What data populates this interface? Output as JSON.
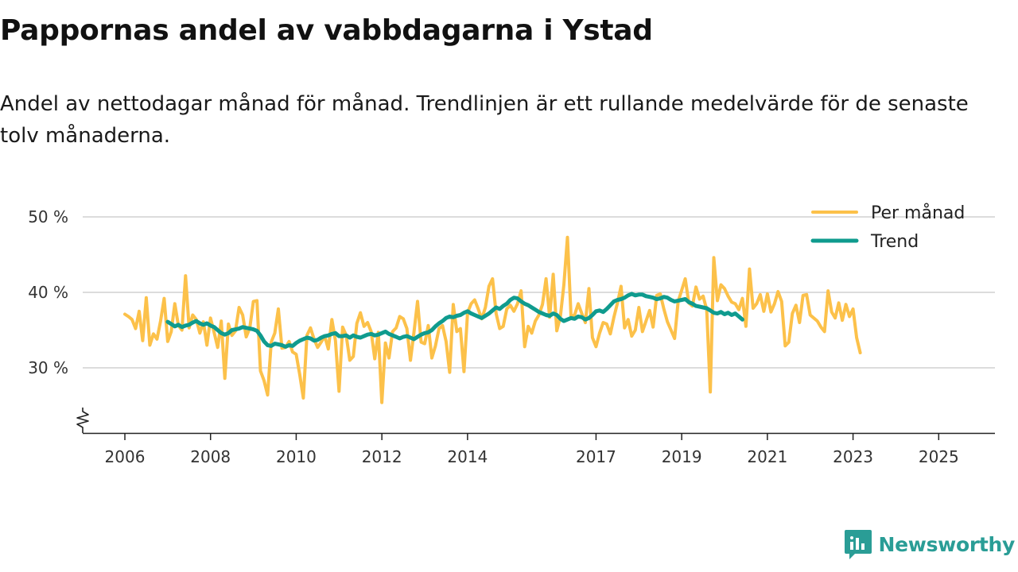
{
  "title": "Pappornas andel av vabbdagarna i Ystad",
  "subtitle": "Andel av nettodagar månad för månad. Trendlinjen är ett rullande medelvärde för de senaste tolv månaderna.",
  "brand": {
    "name": "Newsworthy",
    "accent": "#2a9d96"
  },
  "chart_data": {
    "type": "line",
    "ylim": [
      22,
      50
    ],
    "yticks": [
      30,
      40,
      50
    ],
    "ytick_labels": [
      "30 %",
      "40 %",
      "50 %"
    ],
    "xlim": [
      2006.0,
      2025.5
    ],
    "xticks": [
      2006,
      2008,
      2010,
      2012,
      2014,
      2017,
      2019,
      2021,
      2023,
      2025
    ],
    "xtick_labels": [
      "2006",
      "2008",
      "2010",
      "2012",
      "2014",
      "2017",
      "2019",
      "2021",
      "2023",
      "2025"
    ],
    "x_start": 2006.0,
    "x_step": 0.0833333,
    "grid": true,
    "axis_break": true,
    "legend_position": "top-right",
    "series": [
      {
        "name": "Per månad",
        "color": "#fcc14a",
        "values": [
          37.1,
          36.8,
          36.4,
          35.2,
          37.5,
          33.6,
          39.3,
          33.0,
          34.5,
          33.8,
          36.2,
          39.2,
          33.5,
          34.8,
          38.5,
          35.6,
          35.0,
          42.2,
          35.3,
          37.0,
          36.4,
          34.6,
          36.1,
          33.0,
          36.6,
          34.7,
          32.7,
          36.2,
          28.6,
          35.8,
          34.3,
          34.9,
          38.0,
          37.0,
          34.1,
          35.3,
          38.8,
          38.9,
          29.6,
          28.3,
          26.4,
          33.4,
          34.6,
          37.8,
          32.6,
          32.7,
          33.5,
          32.1,
          31.8,
          29.1,
          26.0,
          34.3,
          35.3,
          33.8,
          32.7,
          33.4,
          34.2,
          32.5,
          36.4,
          33.6,
          26.9,
          35.4,
          34.3,
          31.0,
          31.5,
          35.9,
          37.3,
          35.5,
          36.0,
          34.8,
          31.2,
          34.7,
          25.4,
          33.3,
          31.3,
          34.8,
          35.3,
          36.8,
          36.5,
          35.2,
          31.0,
          34.7,
          38.8,
          33.4,
          33.2,
          35.6,
          31.3,
          32.9,
          35.2,
          35.6,
          33.5,
          29.4,
          38.4,
          34.8,
          35.2,
          29.5,
          37.3,
          38.5,
          39.0,
          37.8,
          36.5,
          38.0,
          40.8,
          41.8,
          37.2,
          35.2,
          35.5,
          37.8,
          38.3,
          37.5,
          38.5,
          40.2,
          32.8,
          35.5,
          34.6,
          36.2,
          37.0,
          38.4,
          41.8,
          36.7,
          42.4,
          34.9,
          36.8,
          41.0,
          47.3,
          36.8,
          37.0,
          38.5,
          37.2,
          36.0,
          40.5,
          34.0,
          32.8,
          34.6,
          36.0,
          35.8,
          34.5,
          36.7,
          38.6,
          40.8,
          35.3,
          36.4,
          34.2,
          35.0,
          38.0,
          34.8,
          36.2,
          37.6,
          35.4,
          39.6,
          39.8,
          37.8,
          36.1,
          35.0,
          33.9,
          38.8,
          40.3,
          41.8,
          38.6,
          38.2,
          40.7,
          39.1,
          39.5,
          37.7,
          26.8,
          44.6,
          38.9,
          41.0,
          40.5,
          39.5,
          38.7,
          38.5,
          37.7,
          39.2,
          35.5,
          43.1,
          37.9,
          38.5,
          39.7,
          37.5,
          39.8,
          37.4,
          38.5,
          40.1,
          38.8,
          32.9,
          33.4,
          37.2,
          38.3,
          36.0,
          39.6,
          39.7,
          37.0,
          36.6,
          36.2,
          35.4,
          34.8,
          40.2,
          37.4,
          36.6,
          38.6,
          36.3,
          38.4,
          36.8,
          37.8,
          34.0,
          32.0
        ]
      },
      {
        "name": "Trend",
        "color": "#0f9b8e",
        "offset": 12,
        "values": [
          36.1,
          35.8,
          35.5,
          35.7,
          35.4,
          35.6,
          35.7,
          36.0,
          36.2,
          35.9,
          35.7,
          35.9,
          35.6,
          35.4,
          35.0,
          34.6,
          34.4,
          34.6,
          35.0,
          35.1,
          35.2,
          35.4,
          35.3,
          35.2,
          35.1,
          34.9,
          34.3,
          33.5,
          33.0,
          32.9,
          33.2,
          33.1,
          33.0,
          32.8,
          33.0,
          32.9,
          33.3,
          33.6,
          33.8,
          34.0,
          33.9,
          33.6,
          33.7,
          34.0,
          34.2,
          34.3,
          34.5,
          34.6,
          34.2,
          34.2,
          34.3,
          34.0,
          34.3,
          34.1,
          34.0,
          34.2,
          34.4,
          34.5,
          34.3,
          34.4,
          34.6,
          34.8,
          34.5,
          34.3,
          34.1,
          33.9,
          34.1,
          34.2,
          34.0,
          33.8,
          34.1,
          34.4,
          34.6,
          34.7,
          35.0,
          35.5,
          35.9,
          36.2,
          36.6,
          36.8,
          36.7,
          36.9,
          37.0,
          37.3,
          37.5,
          37.2,
          37.0,
          36.8,
          36.6,
          36.9,
          37.2,
          37.6,
          38.0,
          37.8,
          38.2,
          38.5,
          39.0,
          39.3,
          39.2,
          38.8,
          38.5,
          38.3,
          38.0,
          37.7,
          37.4,
          37.2,
          37.0,
          36.9,
          37.2,
          37.0,
          36.5,
          36.2,
          36.4,
          36.6,
          36.5,
          36.8,
          36.7,
          36.4,
          36.6,
          37.0,
          37.5,
          37.6,
          37.4,
          37.8,
          38.3,
          38.8,
          39.0,
          39.1,
          39.3,
          39.6,
          39.8,
          39.6,
          39.7,
          39.7,
          39.5,
          39.4,
          39.3,
          39.1,
          39.2,
          39.4,
          39.3,
          39.0,
          38.8,
          38.9,
          39.0,
          39.1,
          38.7,
          38.5,
          38.2,
          38.1,
          38.0,
          37.9,
          37.6,
          37.3,
          37.2,
          37.4,
          37.1,
          37.3,
          37.0,
          37.2,
          36.8,
          36.4
        ]
      }
    ]
  }
}
